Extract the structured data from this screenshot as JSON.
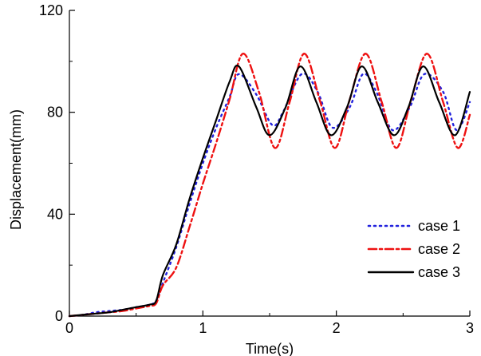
{
  "chart_data": {
    "type": "line",
    "title": "",
    "xlabel": "Time(s)",
    "ylabel": "Displacement(mm)",
    "xlim": [
      0,
      3
    ],
    "ylim": [
      0,
      120
    ],
    "xticks": [
      0,
      1,
      2,
      3
    ],
    "xtick_labels": [
      "0",
      "1",
      "2",
      "3"
    ],
    "yticks": [
      0,
      40,
      80,
      120
    ],
    "ytick_labels": [
      "0",
      "40",
      "80",
      "120"
    ],
    "grid": false,
    "legend_position": "lower-right",
    "series": [
      {
        "name": "case 1",
        "color": "#2222dd",
        "style": "dotted",
        "x": [
          0,
          0.1,
          0.2,
          0.3,
          0.4,
          0.5,
          0.6,
          0.65,
          0.7,
          0.8,
          0.9,
          1.0,
          1.1,
          1.2,
          1.27,
          1.4,
          1.52,
          1.6,
          1.74,
          1.86,
          1.97,
          2.1,
          2.2,
          2.3,
          2.42,
          2.55,
          2.66,
          2.8,
          2.9,
          3.0
        ],
        "y": [
          0,
          0.5,
          1.5,
          2.0,
          2.5,
          3.5,
          4.5,
          6,
          13,
          27,
          44,
          60,
          74,
          86,
          95,
          87,
          75,
          80,
          95,
          88,
          74,
          82,
          95,
          88,
          73,
          82,
          95,
          88,
          73,
          84
        ]
      },
      {
        "name": "case 2",
        "color": "#ee1111",
        "style": "dash-dot",
        "x": [
          0,
          0.1,
          0.2,
          0.3,
          0.4,
          0.5,
          0.6,
          0.65,
          0.7,
          0.8,
          0.9,
          1.0,
          1.1,
          1.2,
          1.3,
          1.42,
          1.54,
          1.65,
          1.76,
          1.88,
          1.99,
          2.1,
          2.22,
          2.34,
          2.45,
          2.56,
          2.68,
          2.8,
          2.91,
          3.0
        ],
        "y": [
          0,
          0.5,
          1.0,
          1.5,
          2.0,
          3.0,
          4.0,
          5,
          12,
          19,
          35,
          52,
          68,
          85,
          103,
          88,
          66,
          84,
          103,
          84,
          66,
          85,
          103,
          84,
          66,
          85,
          103,
          84,
          66,
          79
        ]
      },
      {
        "name": "case 3",
        "color": "#000000",
        "style": "solid",
        "x": [
          0,
          0.1,
          0.2,
          0.3,
          0.4,
          0.5,
          0.6,
          0.65,
          0.7,
          0.8,
          0.9,
          1.0,
          1.1,
          1.2,
          1.27,
          1.4,
          1.5,
          1.62,
          1.73,
          1.85,
          1.96,
          2.08,
          2.19,
          2.31,
          2.43,
          2.54,
          2.65,
          2.77,
          2.89,
          3.0
        ],
        "y": [
          0,
          0.5,
          1.0,
          1.5,
          2.5,
          3.5,
          4.5,
          6,
          16,
          28,
          46,
          62,
          77,
          92,
          98,
          82,
          71,
          82,
          98,
          84,
          71,
          82,
          98,
          84,
          71,
          82,
          98,
          84,
          71,
          88
        ]
      }
    ]
  }
}
